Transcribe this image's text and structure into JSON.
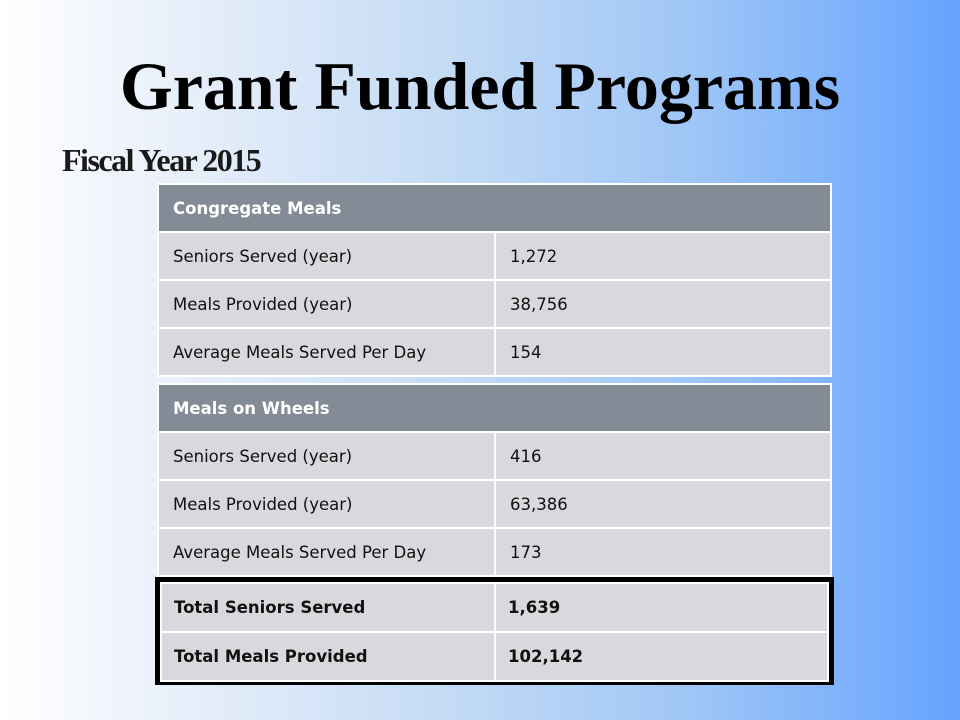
{
  "slide": {
    "title": "Grant Funded Programs",
    "subtitle": "Fiscal Year 2015"
  },
  "congregate_meals": {
    "header": "Congregate Meals",
    "rows": [
      {
        "label": "Seniors Served (year)",
        "value": "1,272"
      },
      {
        "label": "Meals Provided (year)",
        "value": "38,756"
      },
      {
        "label": "Average Meals Served Per Day",
        "value": "154"
      }
    ]
  },
  "meals_on_wheels": {
    "header": "Meals on Wheels",
    "rows": [
      {
        "label": "Seniors Served (year)",
        "value": "416"
      },
      {
        "label": "Meals Provided (year)",
        "value": "63,386"
      },
      {
        "label": "Average Meals Served Per Day",
        "value": "173"
      }
    ]
  },
  "totals": {
    "rows": [
      {
        "label": "Total Seniors Served",
        "value": "1,639"
      },
      {
        "label": "Total Meals Provided",
        "value": "102,142"
      }
    ]
  },
  "colors": {
    "header_bg": "#838b96",
    "row_bg": "#d9d9dd",
    "background_end": "#66a3ff"
  }
}
